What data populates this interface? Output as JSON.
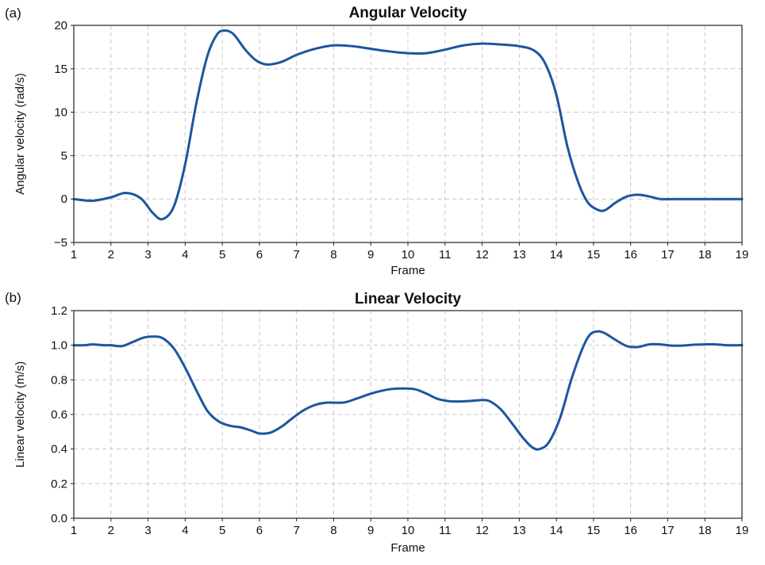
{
  "chart_data": [
    {
      "type": "line",
      "panel_label": "(a)",
      "title": "Angular Velocity",
      "xlabel": "Frame",
      "ylabel": "Angular velocity (rad/s)",
      "xlim": [
        1,
        19
      ],
      "ylim": [
        -5,
        20
      ],
      "xticks": [
        "1",
        "2",
        "3",
        "4",
        "5",
        "6",
        "7",
        "8",
        "9",
        "10",
        "11",
        "12",
        "13",
        "14",
        "15",
        "16",
        "17",
        "18",
        "19"
      ],
      "yticks": [
        "−5",
        "0",
        "5",
        "10",
        "15",
        "20"
      ],
      "yticks_values": [
        -5,
        0,
        5,
        10,
        15,
        20
      ],
      "grid": true,
      "color": "#1b56a0",
      "series": [
        {
          "x": [
            1,
            1.5,
            2,
            2.4,
            2.8,
            3.15,
            3.4,
            3.7,
            4.0,
            4.3,
            4.6,
            4.85,
            5.05,
            5.3,
            5.6,
            5.9,
            6.2,
            6.6,
            7.0,
            7.5,
            8.0,
            8.5,
            9.0,
            9.5,
            10.0,
            10.5,
            11.0,
            11.5,
            12.0,
            12.5,
            13.0,
            13.4,
            13.7,
            14.0,
            14.3,
            14.6,
            14.85,
            15.1,
            15.3,
            15.6,
            15.9,
            16.2,
            16.5,
            16.8,
            17.1,
            17.5,
            18.0,
            18.5,
            19
          ],
          "y": [
            0,
            -0.2,
            0.2,
            0.7,
            0.1,
            -1.7,
            -2.3,
            -0.8,
            4.0,
            11.0,
            16.5,
            18.9,
            19.4,
            19.0,
            17.3,
            16.0,
            15.5,
            15.8,
            16.6,
            17.3,
            17.7,
            17.6,
            17.3,
            17.0,
            16.8,
            16.8,
            17.2,
            17.7,
            17.9,
            17.8,
            17.6,
            17.1,
            15.6,
            12.0,
            6.0,
            1.8,
            -0.4,
            -1.2,
            -1.3,
            -0.4,
            0.3,
            0.5,
            0.3,
            0.0,
            0.0,
            0.0,
            0.0,
            0.0,
            0.0
          ]
        }
      ]
    },
    {
      "type": "line",
      "panel_label": "(b)",
      "title": "Linear Velocity",
      "xlabel": "Frame",
      "ylabel": "Linear velocity (m/s)",
      "xlim": [
        1,
        19
      ],
      "ylim": [
        0,
        1.2
      ],
      "xticks": [
        "1",
        "2",
        "3",
        "4",
        "5",
        "6",
        "7",
        "8",
        "9",
        "10",
        "11",
        "12",
        "13",
        "14",
        "15",
        "16",
        "17",
        "18",
        "19"
      ],
      "yticks": [
        "0.0",
        "0.2",
        "0.4",
        "0.6",
        "0.8",
        "1.0",
        "1.2"
      ],
      "yticks_values": [
        0,
        0.2,
        0.4,
        0.6,
        0.8,
        1.0,
        1.2
      ],
      "grid": true,
      "color": "#1b56a0",
      "series": [
        {
          "x": [
            1,
            1.3,
            1.5,
            1.8,
            2.0,
            2.3,
            2.6,
            2.9,
            3.15,
            3.4,
            3.7,
            4.0,
            4.3,
            4.6,
            4.9,
            5.2,
            5.5,
            5.8,
            6.0,
            6.3,
            6.6,
            6.9,
            7.2,
            7.5,
            7.8,
            8.0,
            8.3,
            8.6,
            9.0,
            9.3,
            9.6,
            9.9,
            10.2,
            10.5,
            10.8,
            11.1,
            11.4,
            11.8,
            12.0,
            12.2,
            12.5,
            12.8,
            13.1,
            13.35,
            13.55,
            13.8,
            14.1,
            14.4,
            14.7,
            14.9,
            15.1,
            15.3,
            15.6,
            15.9,
            16.2,
            16.5,
            16.8,
            17.1,
            17.4,
            17.7,
            18.0,
            18.3,
            18.6,
            18.9,
            19
          ],
          "y": [
            1.0,
            1.0,
            1.005,
            1.0,
            1.0,
            0.995,
            1.02,
            1.045,
            1.05,
            1.04,
            0.98,
            0.87,
            0.74,
            0.62,
            0.56,
            0.535,
            0.525,
            0.505,
            0.49,
            0.495,
            0.53,
            0.58,
            0.625,
            0.655,
            0.668,
            0.668,
            0.67,
            0.69,
            0.72,
            0.737,
            0.748,
            0.75,
            0.745,
            0.72,
            0.69,
            0.677,
            0.675,
            0.68,
            0.683,
            0.677,
            0.63,
            0.55,
            0.465,
            0.41,
            0.4,
            0.44,
            0.58,
            0.8,
            0.98,
            1.06,
            1.08,
            1.07,
            1.03,
            0.995,
            0.99,
            1.005,
            1.005,
            0.998,
            0.998,
            1.003,
            1.005,
            1.005,
            1.0,
            1.0,
            1.0
          ]
        }
      ]
    }
  ]
}
